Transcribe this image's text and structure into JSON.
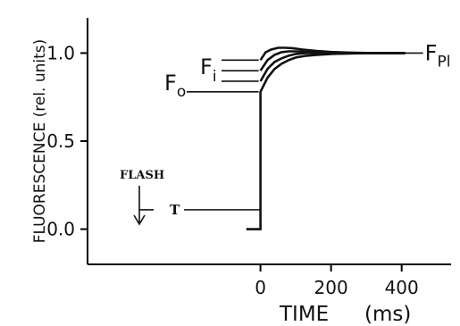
{
  "chart_data": {
    "type": "line",
    "title": "",
    "xlabel": "TIME",
    "xlabel_unit": "(ms)",
    "ylabel": "FLUORESCENCE (rel. units)",
    "xlim": [
      -490,
      540
    ],
    "ylim": [
      -0.2,
      1.2
    ],
    "xticks": [
      0,
      200,
      400
    ],
    "yticks": [
      0.0,
      0.5,
      1.0
    ],
    "xtick_labels": [
      "0",
      "200",
      "400"
    ],
    "ytick_labels": [
      "0.0",
      "0.5",
      "1.0"
    ],
    "grid": false,
    "series": [
      {
        "x": [
          -40,
          0,
          0,
          20,
          40,
          60,
          80,
          100,
          130,
          160,
          200,
          260,
          320,
          410
        ],
        "y": [
          0.0,
          0.0,
          0.78,
          0.86,
          0.91,
          0.94,
          0.96,
          0.975,
          0.985,
          0.99,
          0.995,
          0.998,
          1.0,
          1.0
        ]
      },
      {
        "x": [
          0,
          20,
          40,
          60,
          80,
          100,
          130,
          160,
          200,
          260,
          320,
          410
        ],
        "y": [
          0.84,
          0.91,
          0.95,
          0.97,
          0.985,
          0.995,
          1.0,
          1.0,
          1.0,
          1.0,
          1.0,
          1.0
        ]
      },
      {
        "x": [
          0,
          20,
          40,
          60,
          80,
          100,
          130,
          160,
          200,
          260,
          320,
          410
        ],
        "y": [
          0.9,
          0.96,
          0.99,
          1.005,
          1.01,
          1.01,
          1.008,
          1.005,
          1.003,
          1.001,
          1.0,
          1.0
        ]
      },
      {
        "x": [
          0,
          15,
          30,
          50,
          70,
          90,
          120,
          160,
          200,
          260,
          320,
          410
        ],
        "y": [
          0.96,
          1.005,
          1.02,
          1.03,
          1.03,
          1.028,
          1.02,
          1.012,
          1.006,
          1.002,
          1.0,
          1.0
        ]
      }
    ],
    "annotations": {
      "fpl": {
        "main": "F",
        "sub": "Pl",
        "y": 1.0
      },
      "fi": {
        "main": "F",
        "sub": "i",
        "y": 0.9
      },
      "fo": {
        "main": "F",
        "sub": "o",
        "y": 0.78
      },
      "flash": "FLASH",
      "t": "T",
      "t_level": 0.11
    }
  }
}
